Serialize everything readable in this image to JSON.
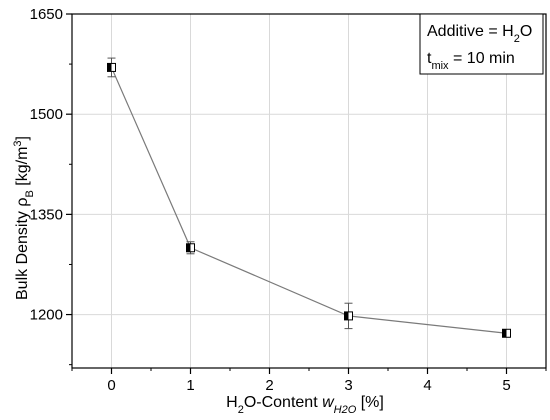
{
  "chart_data": {
    "type": "line",
    "title": "",
    "xlabel": {
      "prefix": "H",
      "sub1": "2",
      "mid": "O-Content ",
      "var": "w",
      "var_sub": "H2O",
      "suffix": " [%]"
    },
    "ylabel": {
      "prefix": "Bulk Density ",
      "sym": "ρ",
      "sym_sub": "B",
      "unit_pre": " [kg/m",
      "unit_sup": "3",
      "unit_post": "]"
    },
    "xlim": [
      -0.5,
      5.5
    ],
    "ylim": [
      1120,
      1650
    ],
    "xticks": [
      0,
      1,
      2,
      3,
      4,
      5
    ],
    "xtick_labels": [
      "0",
      "1",
      "2",
      "3",
      "4",
      "5"
    ],
    "yticks": [
      1200,
      1350,
      1500,
      1650
    ],
    "ytick_labels": [
      "1200",
      "1350",
      "1500",
      "1650"
    ],
    "grid": true,
    "legend_placement": "top-right",
    "legend": {
      "line1_text": "Additive = H",
      "line1_sub": "2",
      "line1_tail": "O",
      "line2_var": "t",
      "line2_sub": "mix",
      "line2_tail": " = 10 min"
    },
    "series": [
      {
        "x": [
          0,
          1,
          3,
          5
        ],
        "y": [
          1570,
          1300,
          1198,
          1172
        ],
        "err": [
          14,
          9,
          19,
          5
        ]
      }
    ],
    "colors": {
      "line": "#7a7a7a",
      "marker": "#000000",
      "grid": "#d9d9d9"
    }
  }
}
